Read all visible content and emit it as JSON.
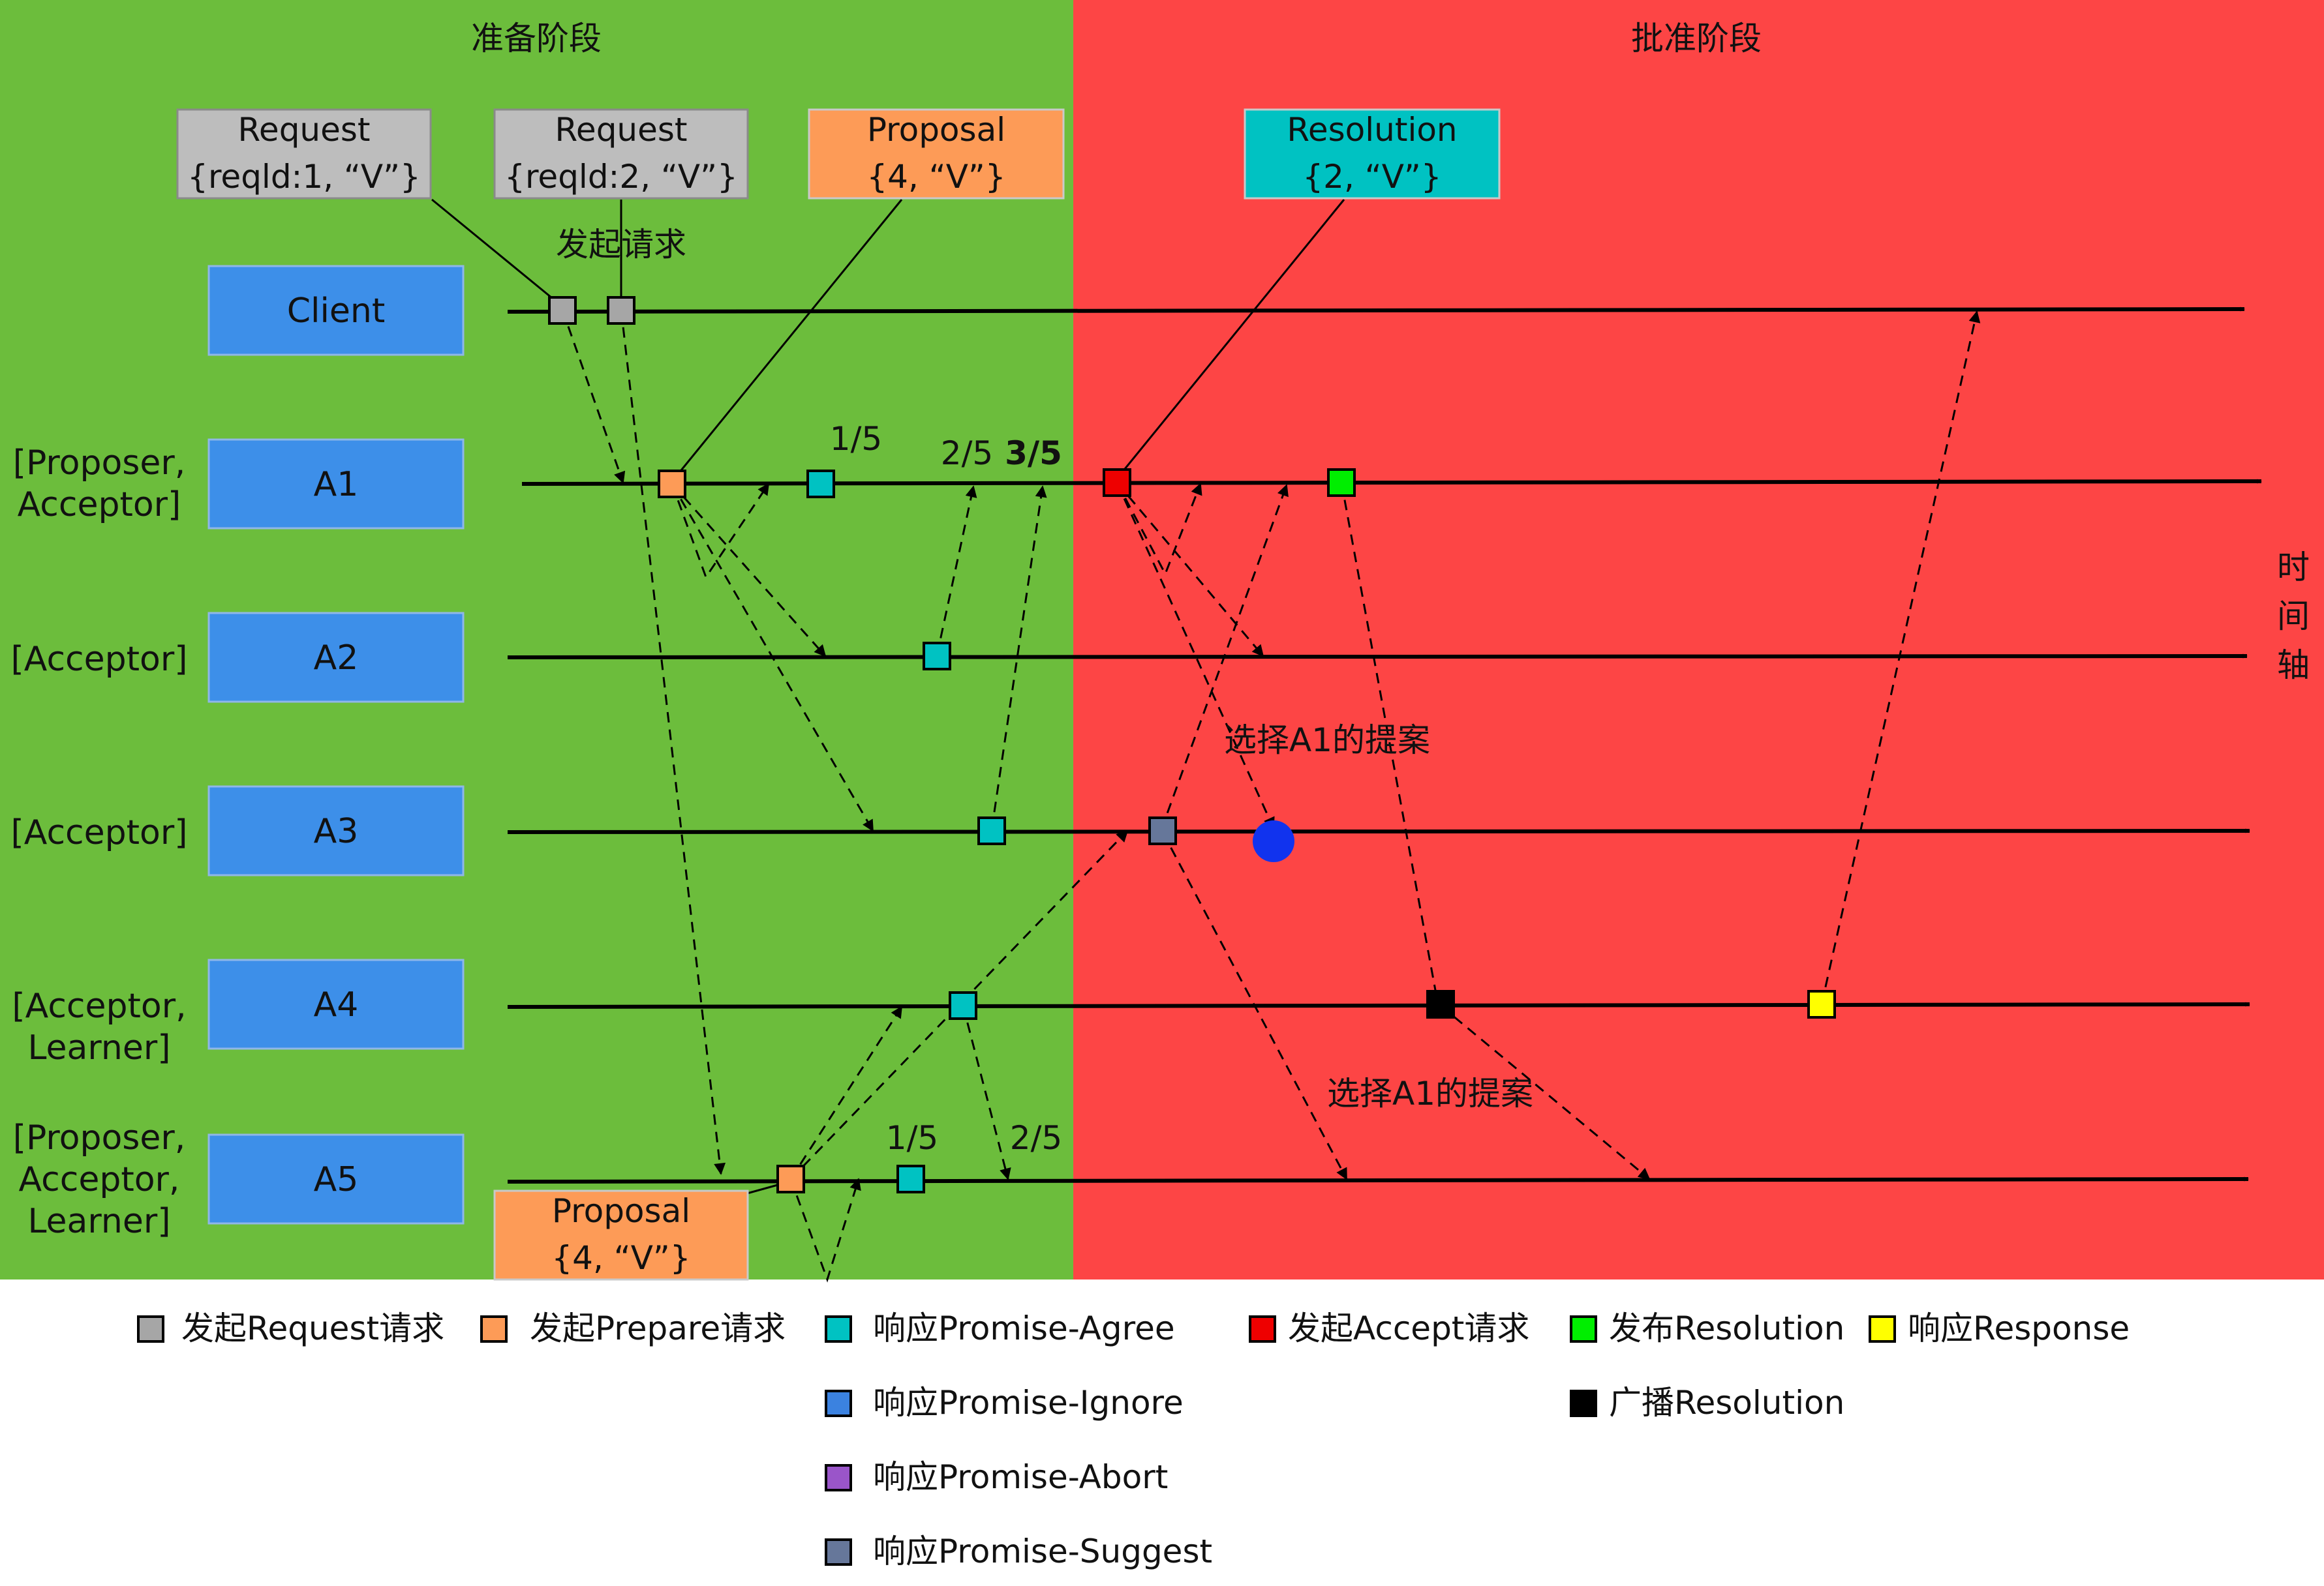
{
  "phases": {
    "prepare": "准备阶段",
    "accept": "批准阶段"
  },
  "timeline_label": [
    "时",
    "间",
    "轴"
  ],
  "nodes": [
    {
      "id": "client",
      "name": "Client",
      "role": ""
    },
    {
      "id": "a1",
      "name": "A1",
      "role": "[Proposer,\nAcceptor]"
    },
    {
      "id": "a2",
      "name": "A2",
      "role": "[Acceptor]"
    },
    {
      "id": "a3",
      "name": "A3",
      "role": "[Acceptor]"
    },
    {
      "id": "a4",
      "name": "A4",
      "role": "[Acceptor,\nLearner]"
    },
    {
      "id": "a5",
      "name": "A5",
      "role": "[Proposer,\nAcceptor,\nLearner]"
    }
  ],
  "callouts": [
    {
      "id": "request-1",
      "line1": "Request",
      "line2": "{reqld:1, “V”}",
      "fill": "#bdbdbd"
    },
    {
      "id": "request-2",
      "line1": "Request",
      "line2": "{reqld:2, “V”}",
      "fill": "#bdbdbd"
    },
    {
      "id": "proposal-a1",
      "line1": "Proposal",
      "line2": "{4, “V”}",
      "fill": "#fd9b57"
    },
    {
      "id": "resolution",
      "line1": "Resolution",
      "line2": "{2, “V”}",
      "fill": "#00c2c2"
    },
    {
      "id": "proposal-a5",
      "line1": "Proposal",
      "line2": "{4, “V”}",
      "fill": "#fd9b57"
    }
  ],
  "annotations": {
    "send_request": "发起请求",
    "a1_count_1": "1/5",
    "a1_count_2": "2/5",
    "a1_count_3": "3/5",
    "a5_count_1": "1/5",
    "a5_count_2": "2/5",
    "choose_1": "选择A1的提案",
    "choose_2": "选择A1的提案"
  },
  "legend": [
    {
      "id": "request",
      "label": "发起Request请求",
      "color": "#a6a6a6"
    },
    {
      "id": "prepare",
      "label": "发起Prepare请求",
      "color": "#fd9b57"
    },
    {
      "id": "promise-agree",
      "label": "响应Promise-Agree",
      "color": "#00c2c2"
    },
    {
      "id": "accept",
      "label": "发起Accept请求",
      "color": "#ee0000"
    },
    {
      "id": "publish-resolution",
      "label": "发布Resolution",
      "color": "#00ee00"
    },
    {
      "id": "response",
      "label": "响应Response",
      "color": "#ffff00"
    },
    {
      "id": "promise-ignore",
      "label": "响应Promise-Ignore",
      "color": "#3b82e0"
    },
    {
      "id": "broadcast-resolution",
      "label": "广播Resolution",
      "color": "#000000"
    },
    {
      "id": "promise-abort",
      "label": "响应Promise-Abort",
      "color": "#9a55c9"
    },
    {
      "id": "promise-suggest",
      "label": "响应Promise-Suggest",
      "color": "#66779a"
    }
  ],
  "colors": {
    "prepare_phase_bg": "#6cbd3c",
    "accept_phase_bg": "#fd4545",
    "node_box": "#3d8fe9",
    "suggest_dot": "#1133ee"
  }
}
